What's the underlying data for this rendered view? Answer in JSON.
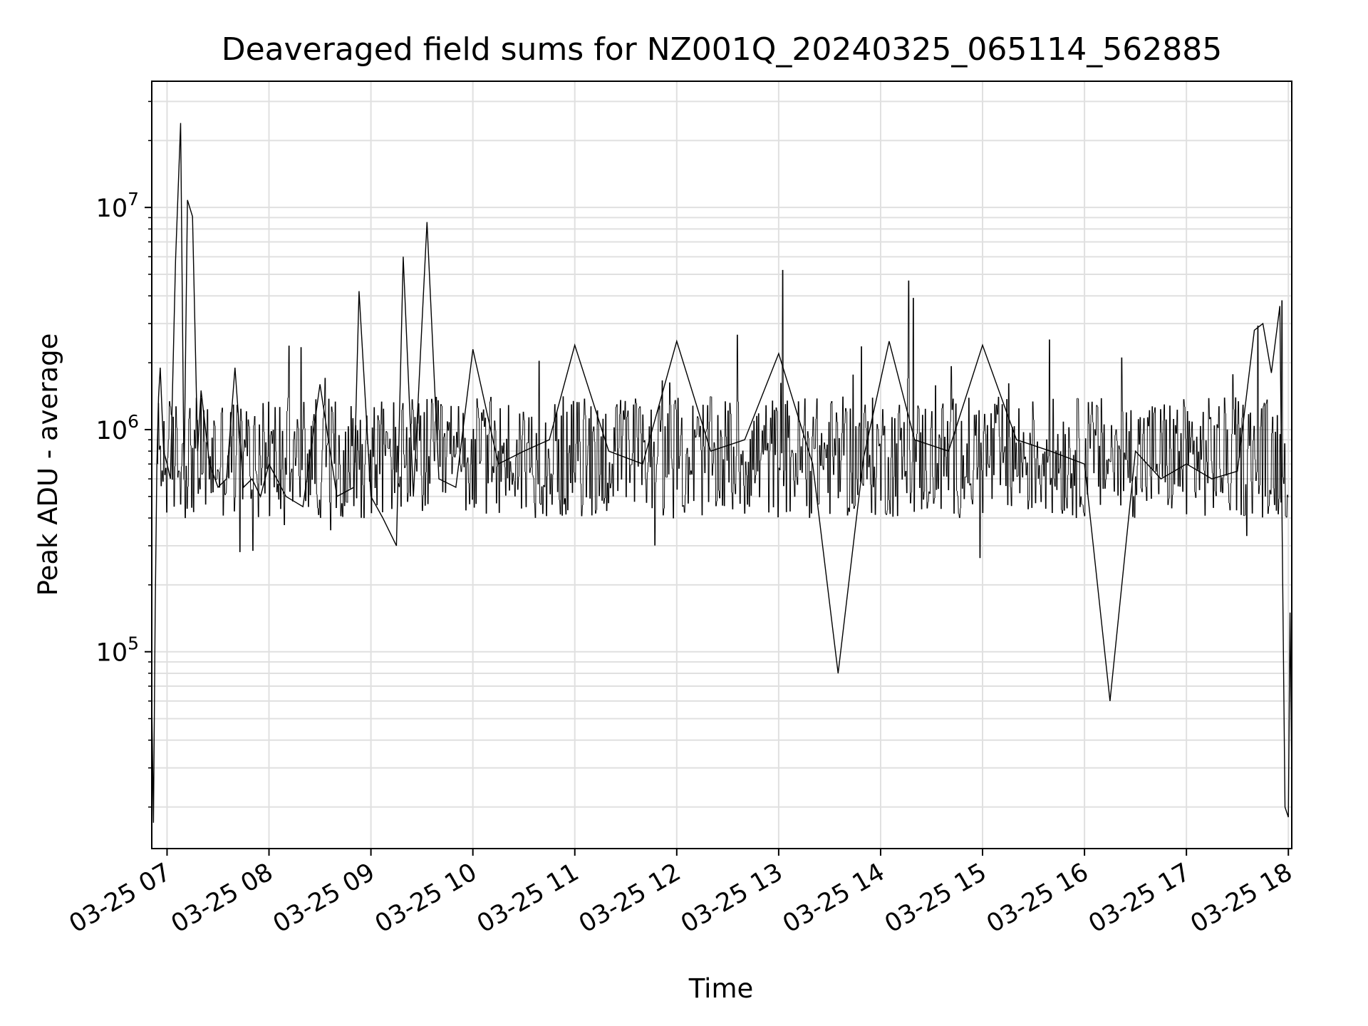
{
  "chart_data": {
    "type": "line",
    "title": "Deaveraged field sums for NZ001Q_20240325_065114_562885",
    "xlabel": "Time",
    "ylabel": "Peak ADU - average",
    "yscale": "log",
    "ylim": [
      13000,
      37000000
    ],
    "xlim": [
      "2024-03-25 06:51",
      "2024-03-25 18:02"
    ],
    "grid": true,
    "line_color": "#000000",
    "grid_color": "#e0e0e0",
    "x_ticks": [
      "2024-03-25 07:00",
      "2024-03-25 08:00",
      "2024-03-25 09:00",
      "2024-03-25 10:00",
      "2024-03-25 11:00",
      "2024-03-25 12:00",
      "2024-03-25 13:00",
      "2024-03-25 14:00",
      "2024-03-25 15:00",
      "2024-03-25 16:00",
      "2024-03-25 17:00",
      "2024-03-25 18:00"
    ],
    "x_tick_labels": [
      "03-25 07",
      "03-25 08",
      "03-25 09",
      "03-25 10",
      "03-25 11",
      "03-25 12",
      "03-25 13",
      "03-25 14",
      "03-25 15",
      "03-25 16",
      "03-25 17",
      "03-25 18"
    ],
    "y_ticks": [
      100000,
      1000000,
      10000000
    ],
    "y_tick_labels": [
      {
        "base": "10",
        "exp": "5"
      },
      {
        "base": "10",
        "exp": "6"
      },
      {
        "base": "10",
        "exp": "7"
      }
    ],
    "series": [
      {
        "values_note_free": true,
        "x": [
          "2024-03-25 06:51",
          "2024-03-25 06:52",
          "2024-03-25 06:53",
          "2024-03-25 06:54",
          "2024-03-25 06:55",
          "2024-03-25 06:56",
          "2024-03-25 06:58",
          "2024-03-25 07:00",
          "2024-03-25 07:02",
          "2024-03-25 07:05",
          "2024-03-25 07:08",
          "2024-03-25 07:10",
          "2024-03-25 07:12",
          "2024-03-25 07:15",
          "2024-03-25 07:18",
          "2024-03-25 07:20",
          "2024-03-25 07:25",
          "2024-03-25 07:30",
          "2024-03-25 07:35",
          "2024-03-25 07:40",
          "2024-03-25 07:45",
          "2024-03-25 07:50",
          "2024-03-25 07:55",
          "2024-03-25 08:00",
          "2024-03-25 08:10",
          "2024-03-25 08:20",
          "2024-03-25 08:30",
          "2024-03-25 08:40",
          "2024-03-25 08:50",
          "2024-03-25 08:53",
          "2024-03-25 09:00",
          "2024-03-25 09:07",
          "2024-03-25 09:15",
          "2024-03-25 09:19",
          "2024-03-25 09:25",
          "2024-03-25 09:33",
          "2024-03-25 09:40",
          "2024-03-25 09:50",
          "2024-03-25 10:00",
          "2024-03-25 10:15",
          "2024-03-25 10:30",
          "2024-03-25 10:45",
          "2024-03-25 11:00",
          "2024-03-25 11:20",
          "2024-03-25 11:40",
          "2024-03-25 12:00",
          "2024-03-25 12:20",
          "2024-03-25 12:40",
          "2024-03-25 13:00",
          "2024-03-25 13:20",
          "2024-03-25 13:35",
          "2024-03-25 13:50",
          "2024-03-25 14:05",
          "2024-03-25 14:20",
          "2024-03-25 14:40",
          "2024-03-25 15:00",
          "2024-03-25 15:20",
          "2024-03-25 15:40",
          "2024-03-25 16:00",
          "2024-03-25 16:15",
          "2024-03-25 16:30",
          "2024-03-25 16:45",
          "2024-03-25 17:00",
          "2024-03-25 17:15",
          "2024-03-25 17:30",
          "2024-03-25 17:40",
          "2024-03-25 17:45",
          "2024-03-25 17:50",
          "2024-03-25 17:55",
          "2024-03-25 17:58",
          "2024-03-25 18:00",
          "2024-03-25 18:01",
          "2024-03-25 18:02"
        ],
        "y": [
          60000,
          17000,
          150000,
          700000,
          1400000,
          1900000,
          800000,
          700000,
          600000,
          5800000,
          24000000,
          600000,
          10800000,
          9100000,
          800000,
          1500000,
          700000,
          550000,
          600000,
          1900000,
          550000,
          600000,
          500000,
          700000,
          500000,
          450000,
          1600000,
          500000,
          550000,
          4200000,
          500000,
          400000,
          300000,
          6000000,
          500000,
          8600000,
          600000,
          550000,
          2300000,
          700000,
          800000,
          900000,
          2400000,
          800000,
          700000,
          2500000,
          800000,
          900000,
          2200000,
          700000,
          80000,
          750000,
          2500000,
          900000,
          800000,
          2400000,
          900000,
          800000,
          700000,
          60000,
          800000,
          600000,
          700000,
          600000,
          650000,
          2800000,
          3000000,
          1800000,
          3600000,
          20000,
          18000,
          150000,
          28000
        ]
      }
    ]
  }
}
